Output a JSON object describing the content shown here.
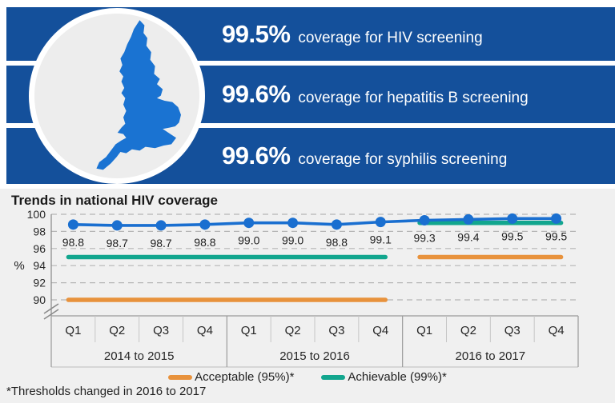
{
  "banners": {
    "items": [
      {
        "value": "99.5%",
        "label": "coverage for HIV screening"
      },
      {
        "value": "99.6%",
        "label": "coverage for hepatitis B screening"
      },
      {
        "value": "99.6%",
        "label": "coverage for syphilis screening"
      }
    ]
  },
  "map": {
    "region": "England"
  },
  "chart": {
    "title": "Trends in national HIV coverage",
    "footnote": "*Thresholds changed in 2016 to 2017",
    "ylabel": "%"
  },
  "chart_data": {
    "type": "line",
    "title": "Trends in national HIV coverage",
    "ylabel": "%",
    "ylim": [
      90,
      100
    ],
    "y_ticks": [
      100,
      98,
      96,
      94,
      92,
      90
    ],
    "axis_break_below": 90,
    "grid": "dashed-horizontal",
    "categories": [
      "Q1",
      "Q2",
      "Q3",
      "Q4",
      "Q1",
      "Q2",
      "Q3",
      "Q4",
      "Q1",
      "Q2",
      "Q3",
      "Q4"
    ],
    "year_groups": [
      {
        "label": "2014 to 2015",
        "start": 0,
        "end": 3
      },
      {
        "label": "2015 to 2016",
        "start": 4,
        "end": 7
      },
      {
        "label": "2016 to 2017",
        "start": 8,
        "end": 11
      }
    ],
    "series": [
      {
        "name": "National HIV coverage",
        "color": "#1a6fd0",
        "values": [
          98.8,
          98.7,
          98.7,
          98.8,
          99.0,
          99.0,
          98.8,
          99.1,
          99.3,
          99.4,
          99.5,
          99.5
        ],
        "point_labels": [
          "98.8",
          "98.7",
          "98.7",
          "98.8",
          "99.0",
          "99.0",
          "98.8",
          "99.1",
          "99.3",
          "99.4",
          "99.5",
          "99.5"
        ]
      }
    ],
    "thresholds": [
      {
        "name": "Acceptable (95%)*",
        "color": "#e8923c",
        "segments": [
          {
            "from": 0,
            "to": 7,
            "value": 90
          },
          {
            "from": 8,
            "to": 11,
            "value": 95
          }
        ]
      },
      {
        "name": "Achievable (99%)*",
        "color": "#12a68e",
        "segments": [
          {
            "from": 0,
            "to": 7,
            "value": 95
          },
          {
            "from": 8,
            "to": 11,
            "value": 99
          }
        ]
      }
    ],
    "legend": [
      {
        "label": "Acceptable (95%)*",
        "color": "#e8923c"
      },
      {
        "label": "Achievable (99%)*",
        "color": "#12a68e"
      }
    ],
    "legend_position": "bottom-center",
    "footnote": "*Thresholds changed in 2016 to 2017"
  },
  "colors": {
    "banner": "#14509b",
    "map_blue": "#1a73d2",
    "line_blue": "#1a6fd0",
    "acceptable_orange": "#e8923c",
    "achievable_teal": "#12a68e",
    "panel_gray": "#f0f0f0",
    "circle_gray": "#ededed"
  }
}
